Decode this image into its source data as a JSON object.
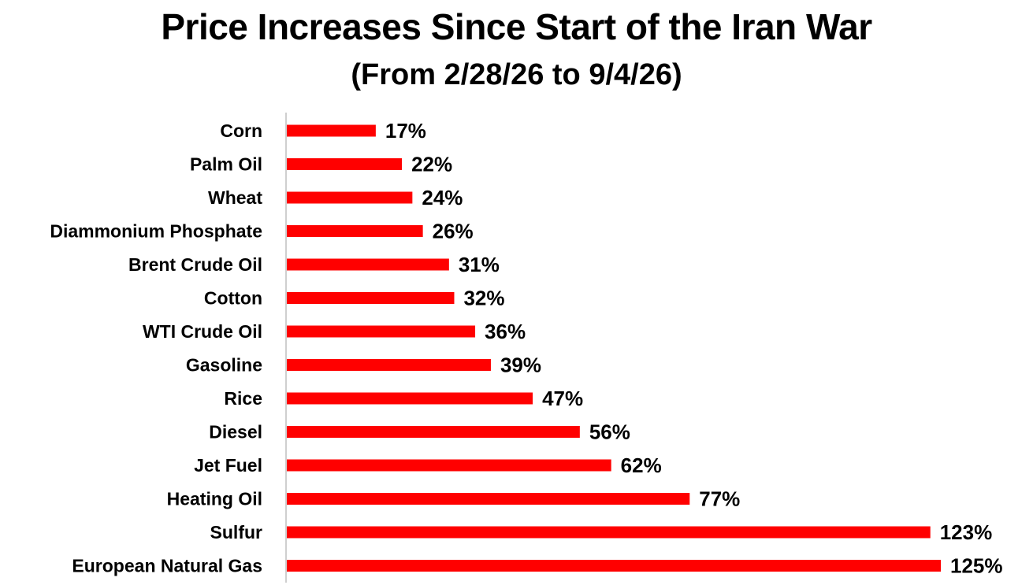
{
  "chart_data": {
    "type": "bar",
    "orientation": "horizontal",
    "title": "Price Increases Since Start of the Iran War",
    "subtitle": "(From 2/28/26 to 9/4/26)",
    "categories": [
      "Corn",
      "Palm Oil",
      "Wheat",
      "Diammonium Phosphate",
      "Brent Crude Oil",
      "Cotton",
      "WTI Crude Oil",
      "Gasoline",
      "Rice",
      "Diesel",
      "Jet Fuel",
      "Heating Oil",
      "Sulfur",
      "European Natural Gas"
    ],
    "values": [
      17,
      22,
      24,
      26,
      31,
      32,
      36,
      39,
      47,
      56,
      62,
      77,
      123,
      125
    ],
    "data_labels": [
      "17%",
      "22%",
      "24%",
      "26%",
      "31%",
      "32%",
      "36%",
      "39%",
      "47%",
      "56%",
      "62%",
      "77%",
      "123%",
      "125%"
    ],
    "unit": "%",
    "xlim": [
      0,
      125
    ],
    "bar_color": "#FF0000",
    "grid": false,
    "legend": "none"
  }
}
